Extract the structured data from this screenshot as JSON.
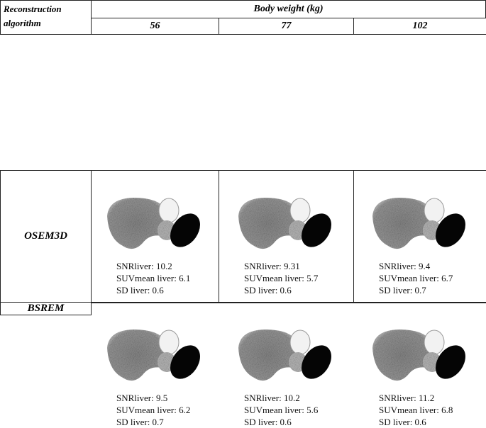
{
  "header": {
    "row_label": "Reconstruction algorithm",
    "group_label": "Body weight (kg)",
    "columns": [
      "56",
      "77",
      "102"
    ]
  },
  "rows": [
    {
      "label": "OSEM3D",
      "cells": [
        [
          "SNRliver: 10.2",
          "SUVmean liver: 6.1",
          "SD liver: 0.6"
        ],
        [
          "SNRliver: 9.31",
          "SUVmean liver: 5.7",
          "SD liver: 0.6"
        ],
        [
          "SNRliver: 9.4",
          "SUVmean liver: 6.7",
          "SD liver: 0.7"
        ]
      ]
    },
    {
      "label": "BSREM",
      "cells": [
        [
          "SNRliver: 9.5",
          "SUVmean liver: 6.2",
          "SD liver: 0.7"
        ],
        [
          "SNRliver: 10.2",
          "SUVmean liver: 5.6",
          "SD liver: 0.6"
        ],
        [
          "SNRliver: 11.2",
          "SUVmean liver: 6.8",
          "SD liver: 0.6"
        ]
      ]
    }
  ]
}
